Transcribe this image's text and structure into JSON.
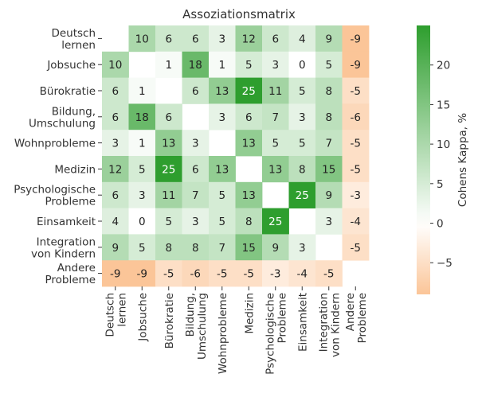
{
  "chart_data": {
    "type": "heatmap",
    "title": "Assoziationsmatrix",
    "row_labels": [
      [
        "Deutsch",
        "lernen"
      ],
      [
        "Jobsuche"
      ],
      [
        "Bürokratie"
      ],
      [
        "Bildung,",
        "Umschulung"
      ],
      [
        "Wohnprobleme"
      ],
      [
        "Medizin"
      ],
      [
        "Psychologische",
        "Probleme"
      ],
      [
        "Einsamkeit"
      ],
      [
        "Integration",
        "von Kindern"
      ],
      [
        "Andere",
        "Probleme"
      ]
    ],
    "col_labels": [
      [
        "Deutsch",
        "lernen"
      ],
      [
        "Jobsuche"
      ],
      [
        "Bürokratie"
      ],
      [
        "Bildung,",
        "Umschulung"
      ],
      [
        "Wohnprobleme"
      ],
      [
        "Medizin"
      ],
      [
        "Psychologische",
        "Probleme"
      ],
      [
        "Einsamkeit"
      ],
      [
        "Integration",
        "von Kindern"
      ],
      [
        "Andere",
        "Probleme"
      ]
    ],
    "values": [
      [
        null,
        10,
        6,
        6,
        3,
        12,
        6,
        4,
        9,
        -9
      ],
      [
        10,
        null,
        1,
        18,
        1,
        5,
        3,
        0,
        5,
        -9
      ],
      [
        6,
        1,
        null,
        6,
        13,
        25,
        11,
        5,
        8,
        -5
      ],
      [
        6,
        18,
        6,
        null,
        3,
        6,
        7,
        3,
        8,
        -6
      ],
      [
        3,
        1,
        13,
        3,
        null,
        13,
        5,
        5,
        7,
        -5
      ],
      [
        12,
        5,
        25,
        6,
        13,
        null,
        13,
        8,
        15,
        -5
      ],
      [
        6,
        3,
        11,
        7,
        5,
        13,
        null,
        25,
        9,
        -3
      ],
      [
        4,
        0,
        5,
        3,
        5,
        8,
        25,
        null,
        3,
        -4
      ],
      [
        9,
        5,
        8,
        8,
        7,
        15,
        9,
        3,
        null,
        -5
      ],
      [
        -9,
        -9,
        -5,
        -6,
        -5,
        -5,
        -3,
        -4,
        -5,
        null
      ]
    ],
    "colorbar": {
      "label": "Cohens Kappa, %",
      "min": -9,
      "max": 25,
      "ticks": [
        -5,
        0,
        5,
        10,
        15,
        20
      ],
      "positive_color": "#2e9e2e",
      "negative_color": "#fbc598",
      "neutral_color": "#ffffff"
    }
  }
}
